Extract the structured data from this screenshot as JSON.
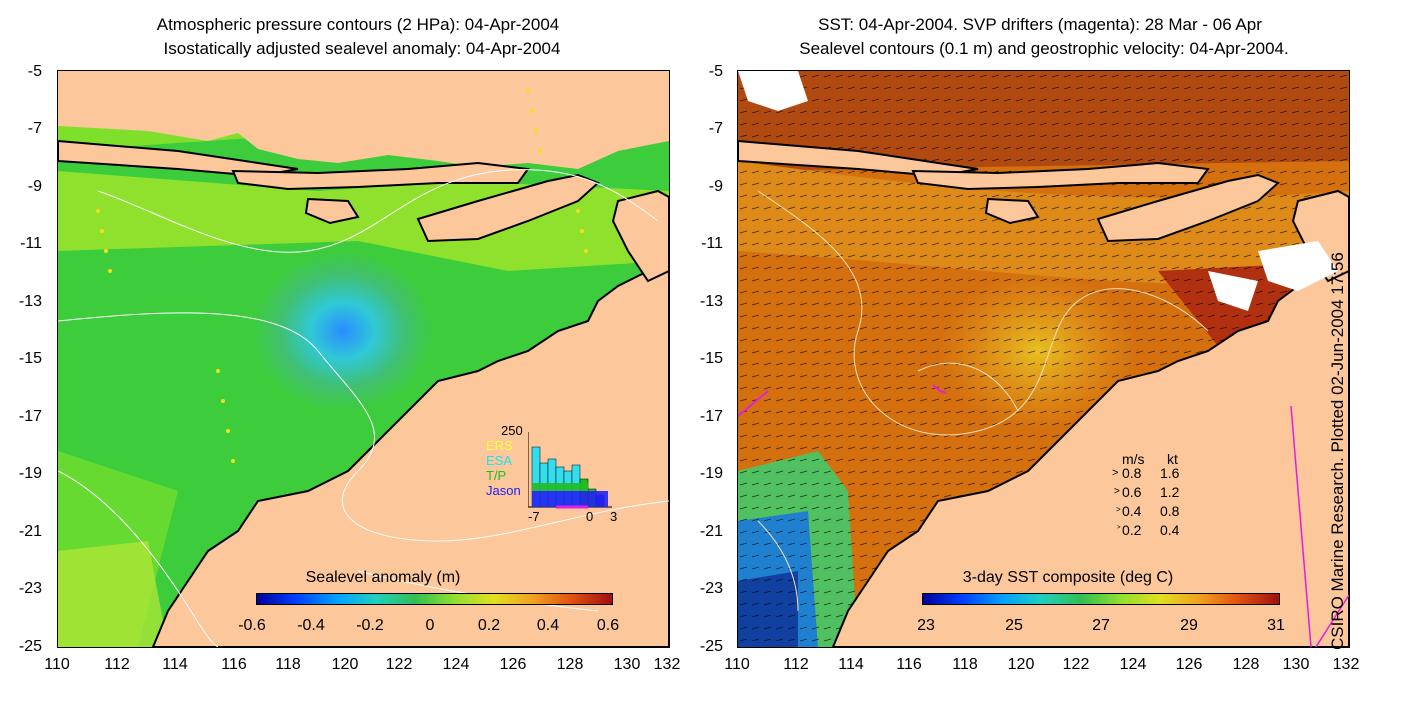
{
  "left_panel": {
    "title_line1": "Atmospheric pressure contours (2 HPa): 04-Apr-2004",
    "title_line2": "Isostatically adjusted sealevel anomaly: 04-Apr-2004",
    "colorbar_title": "Sealevel anomaly (m)",
    "colorbar_ticks": [
      "-0.6",
      "-0.4",
      "-0.2",
      "0",
      "0.2",
      "0.4",
      "0.6"
    ],
    "inset_ymax": "250",
    "inset_xticks": [
      "-7",
      "0",
      "3"
    ],
    "inset_legend": [
      {
        "label": "ERS",
        "color": "#ffff33"
      },
      {
        "label": "ESA",
        "color": "#33ddee"
      },
      {
        "label": "T/P",
        "color": "#22bb22"
      },
      {
        "label": "Jason",
        "color": "#2222ee"
      }
    ]
  },
  "right_panel": {
    "title_line1": "SST: 04-Apr-2004. SVP drifters (magenta): 28 Mar - 06 Apr",
    "title_line2": "Sealevel contours (0.1 m) and geostrophic velocity: 04-Apr-2004.",
    "colorbar_title": "3-day SST composite (deg C)",
    "colorbar_ticks": [
      "23",
      "25",
      "27",
      "29",
      "31"
    ],
    "velocity_header_ms": "m/s",
    "velocity_header_kt": "kt",
    "velocity_rows": [
      {
        "ms": "0.8",
        "kt": "1.6"
      },
      {
        "ms": "0.6",
        "kt": "1.2"
      },
      {
        "ms": "0.4",
        "kt": "0.8"
      },
      {
        "ms": "0.2",
        "kt": "0.4"
      }
    ]
  },
  "y_ticks": [
    "-5",
    "-7",
    "-9",
    "-11",
    "-13",
    "-15",
    "-17",
    "-19",
    "-21",
    "-23",
    "-25"
  ],
  "x_ticks": [
    "110",
    "112",
    "114",
    "116",
    "118",
    "120",
    "122",
    "124",
    "126",
    "128",
    "130",
    "132"
  ],
  "side_label": "CSIRO Marine Research. Plotted 02-Jun-2004 17:56",
  "colors": {
    "land": "#fbc79b",
    "ocean_green": "#38d038",
    "sst_orange": "#d86a10",
    "drifter": "#e020e0"
  }
}
